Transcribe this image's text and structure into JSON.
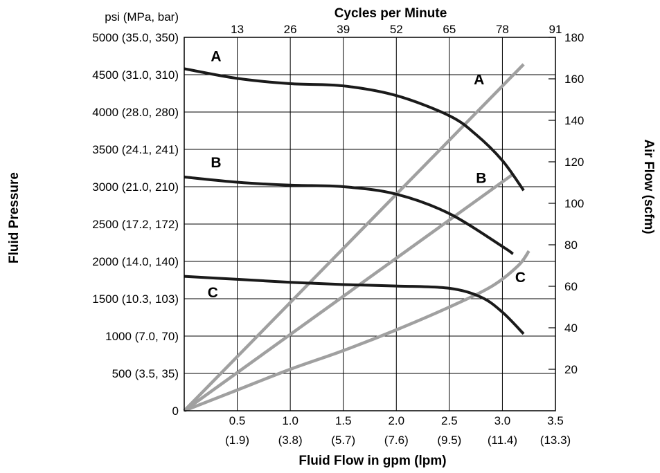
{
  "chart_data": {
    "type": "line",
    "top_axis": {
      "title": "Cycles per Minute",
      "ticks": [
        "13",
        "26",
        "39",
        "52",
        "65",
        "78",
        "91"
      ],
      "range": [
        0,
        91
      ]
    },
    "bottom_axis": {
      "title": "Fluid Flow in gpm (lpm)",
      "range": [
        0,
        3.5
      ],
      "ticks": [
        {
          "value": 0.5,
          "label": "0.5",
          "sublabel": "(1.9)"
        },
        {
          "value": 1.0,
          "label": "1.0",
          "sublabel": "(3.8)"
        },
        {
          "value": 1.5,
          "label": "1.5",
          "sublabel": "(5.7)"
        },
        {
          "value": 2.0,
          "label": "2.0",
          "sublabel": "(7.6)"
        },
        {
          "value": 2.5,
          "label": "2.5",
          "sublabel": "(9.5)"
        },
        {
          "value": 3.0,
          "label": "3.0",
          "sublabel": "(11.4)"
        },
        {
          "value": 3.5,
          "label": "3.5",
          "sublabel": "(13.3)"
        }
      ]
    },
    "left_axis": {
      "title": "Fluid Pressure",
      "unit_header": "psi (MPa, bar)",
      "range": [
        0,
        5000
      ],
      "ticks": [
        {
          "value": 0,
          "label": "0"
        },
        {
          "value": 500,
          "label": "500 (3.5, 35)"
        },
        {
          "value": 1000,
          "label": "1000 (7.0, 70)"
        },
        {
          "value": 1500,
          "label": "1500 (10.3, 103)"
        },
        {
          "value": 2000,
          "label": "2000 (14.0, 140)"
        },
        {
          "value": 2500,
          "label": "2500 (17.2, 172)"
        },
        {
          "value": 3000,
          "label": "3000 (21.0, 210)"
        },
        {
          "value": 3500,
          "label": "3500 (24.1, 241)"
        },
        {
          "value": 4000,
          "label": "4000 (28.0, 280)"
        },
        {
          "value": 4500,
          "label": "4500 (31.0, 310)"
        },
        {
          "value": 5000,
          "label": "5000 (35.0, 350)"
        }
      ]
    },
    "right_axis": {
      "title": "Air Flow (scfm)",
      "range": [
        0,
        180
      ],
      "ticks": [
        "20",
        "40",
        "60",
        "80",
        "100",
        "120",
        "140",
        "160",
        "180"
      ]
    },
    "grid": true,
    "series": [
      {
        "name": "A",
        "kind": "fluid-pressure",
        "axis": "left",
        "color": "#1a1a1a",
        "x": [
          0,
          0.5,
          1.0,
          1.5,
          2.0,
          2.5,
          2.75,
          3.0,
          3.2
        ],
        "y": [
          4580,
          4450,
          4380,
          4350,
          4220,
          3950,
          3700,
          3350,
          2950
        ]
      },
      {
        "name": "B",
        "kind": "fluid-pressure",
        "axis": "left",
        "color": "#1a1a1a",
        "x": [
          0,
          0.5,
          1.0,
          1.5,
          2.0,
          2.5,
          3.0,
          3.1
        ],
        "y": [
          3130,
          3060,
          3020,
          3000,
          2900,
          2640,
          2200,
          2100
        ]
      },
      {
        "name": "C",
        "kind": "fluid-pressure",
        "axis": "left",
        "color": "#1a1a1a",
        "x": [
          0,
          0.5,
          1.0,
          1.5,
          2.0,
          2.5,
          2.8,
          3.0,
          3.2
        ],
        "y": [
          1800,
          1760,
          1720,
          1690,
          1670,
          1640,
          1520,
          1320,
          1030
        ]
      },
      {
        "name": "A",
        "kind": "air-flow",
        "axis": "right",
        "color": "#a0a0a0",
        "x": [
          0,
          3.2
        ],
        "y": [
          0,
          167
        ]
      },
      {
        "name": "B",
        "kind": "air-flow",
        "axis": "right",
        "color": "#a0a0a0",
        "x": [
          0,
          3.1
        ],
        "y": [
          0,
          114
        ]
      },
      {
        "name": "C",
        "kind": "air-flow",
        "axis": "right",
        "color": "#a0a0a0",
        "x": [
          0,
          0.5,
          1.0,
          1.5,
          2.0,
          2.5,
          2.9,
          3.15,
          3.25
        ],
        "y": [
          0,
          10,
          20,
          29,
          39,
          50,
          60,
          70,
          77
        ]
      }
    ],
    "curve_labels": [
      {
        "text": "A",
        "curve": "fluid-pressure",
        "x": 0.3,
        "y": 4680
      },
      {
        "text": "B",
        "curve": "fluid-pressure",
        "x": 0.3,
        "y": 3260
      },
      {
        "text": "C",
        "curve": "fluid-pressure",
        "x": 0.27,
        "y": 1520
      },
      {
        "text": "A",
        "curve": "air-flow",
        "x": 2.78,
        "y": 4370
      },
      {
        "text": "B",
        "curve": "air-flow",
        "x": 2.8,
        "y": 3050
      },
      {
        "text": "C",
        "curve": "air-flow",
        "x": 3.17,
        "y": 1720
      }
    ]
  }
}
